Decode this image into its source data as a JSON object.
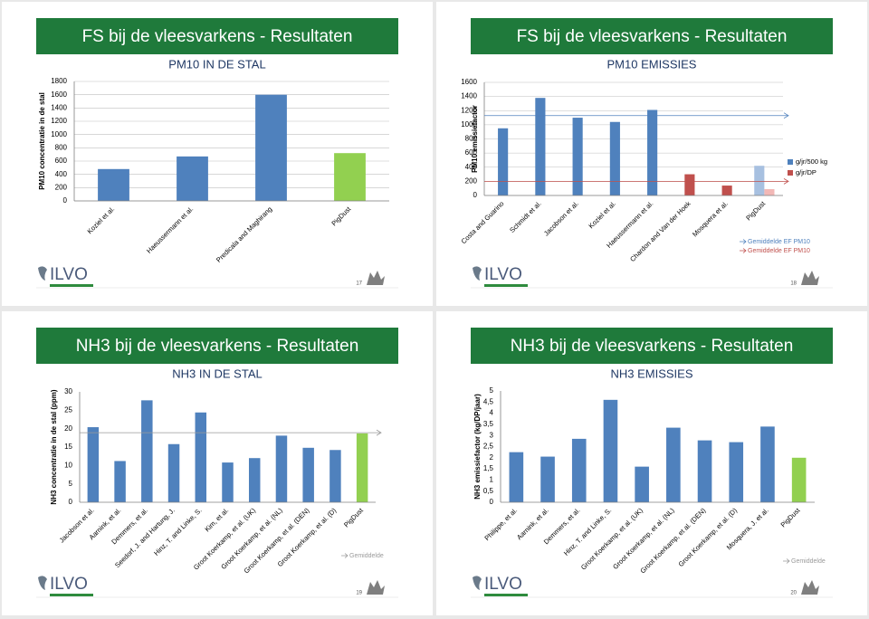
{
  "logo_text": "ILVO",
  "chart_data": [
    {
      "type": "bar",
      "slide_number": 17,
      "title": "FS bij de vleesvarkens - Resultaten",
      "subtitle": "PM10 IN DE STAL",
      "ylabel": "PM10 concentratie in de stal",
      "categories": [
        "Koziel et al.",
        "Haeussermann et al.",
        "Predicala and Maghirang",
        "PigDust"
      ],
      "series": [
        {
          "values": [
            480,
            670,
            1600,
            720
          ],
          "colors": [
            "#4f81bd",
            "#4f81bd",
            "#4f81bd",
            "#92d050"
          ]
        }
      ],
      "ylim": [
        0,
        1800
      ],
      "yticks": [
        0,
        200,
        400,
        600,
        800,
        1000,
        1200,
        1400,
        1600,
        1800
      ],
      "grid": true
    },
    {
      "type": "bar",
      "slide_number": 18,
      "title": "FS bij de vleesvarkens - Resultaten",
      "subtitle": "PM10 EMISSIES",
      "ylabel": "PM10 emissiefactor",
      "categories": [
        "Costa and Guarino",
        "Schmidt et al.",
        "Jacobson et al.",
        "Koziel et al.",
        "Haeussermann et al.",
        "Chardon and Van der Hoek",
        "Mosquera et al.",
        "PigDust"
      ],
      "series": [
        {
          "name": "g/jr/500 kg",
          "color": "#4f81bd",
          "values": [
            950,
            1380,
            1100,
            1040,
            1210,
            null,
            null,
            420
          ],
          "colors": [
            "#4f81bd",
            "#4f81bd",
            "#4f81bd",
            "#4f81bd",
            "#4f81bd",
            "#4f81bd",
            "#4f81bd",
            "#a7c0e0"
          ]
        },
        {
          "name": "g/jr/DP",
          "color": "#c0504d",
          "values": [
            null,
            null,
            null,
            null,
            null,
            300,
            140,
            90
          ],
          "colors": [
            "#c0504d",
            "#c0504d",
            "#c0504d",
            "#c0504d",
            "#c0504d",
            "#c0504d",
            "#c0504d",
            "#f2b8b6"
          ]
        }
      ],
      "reference_lines": [
        {
          "label": "Gemiddelde EF PM10",
          "value": 1130,
          "color": "#4f81bd"
        },
        {
          "label": "Gemiddelde EF PM10",
          "value": 200,
          "color": "#c0504d"
        }
      ],
      "ylim": [
        0,
        1600
      ],
      "yticks": [
        0,
        200,
        400,
        600,
        800,
        1000,
        1200,
        1400,
        1600
      ],
      "grid": true
    },
    {
      "type": "bar",
      "slide_number": 19,
      "title": "NH3 bij de vleesvarkens - Resultaten",
      "subtitle": "NH3 IN DE STAL",
      "ylabel": "NH3 concentratie in de stal (ppm)",
      "categories": [
        "Jacobson et al.",
        "Aarnink, et al.",
        "Demmers, et al.",
        "Seedorf, J. and Hartung, J.",
        "Hinz, T. and Linke, S.",
        "Kim, et al.",
        "Groot Koerkamp, et al. (UK)",
        "Groot Koerkamp, et al. (NL)",
        "Groot Koerkamp, et al. (DEN)",
        "Groot Koerkamp, et al. (D)",
        "PigDust"
      ],
      "series": [
        {
          "values": [
            20.4,
            11.2,
            27.7,
            15.8,
            24.4,
            10.8,
            12,
            18.1,
            14.8,
            14.2,
            18.7
          ],
          "colors": [
            "#4f81bd",
            "#4f81bd",
            "#4f81bd",
            "#4f81bd",
            "#4f81bd",
            "#4f81bd",
            "#4f81bd",
            "#4f81bd",
            "#4f81bd",
            "#4f81bd",
            "#92d050"
          ]
        }
      ],
      "reference_lines": [
        {
          "label": "Gemiddelde",
          "value": 18.9,
          "color": "#9a9a9a"
        }
      ],
      "ylim": [
        0,
        30
      ],
      "yticks": [
        0,
        5,
        10,
        15,
        20,
        25,
        30
      ],
      "grid": false
    },
    {
      "type": "bar",
      "slide_number": 20,
      "title": "NH3 bij de vleesvarkens - Resultaten",
      "subtitle": "NH3 EMISSIES",
      "ylabel": "NH3 emissiefactor (kg/DP/jaar)",
      "categories": [
        "Philippe, et al.",
        "Aarnink, et al.",
        "Demmers, et al.",
        "Hinz, T. and Linke, S.",
        "Groot Koerkamp, et al. (UK)",
        "Groot Koerkamp, et al. (NL)",
        "Groot Koerkamp, et al. (DEN)",
        "Groot Koerkamp, et al. (D)",
        "Mosquera, J. et al.",
        "PigDust"
      ],
      "series": [
        {
          "values": [
            2.25,
            2.05,
            2.85,
            4.6,
            1.6,
            3.35,
            2.78,
            2.7,
            3.4,
            2.0
          ],
          "colors": [
            "#4f81bd",
            "#4f81bd",
            "#4f81bd",
            "#4f81bd",
            "#4f81bd",
            "#4f81bd",
            "#4f81bd",
            "#4f81bd",
            "#4f81bd",
            "#92d050"
          ]
        }
      ],
      "note": "Gemiddelde",
      "ylim": [
        0,
        5
      ],
      "yticks": [
        0,
        {
          "value": 0.5,
          "label": "0,5"
        },
        1,
        {
          "value": 1.5,
          "label": "1,5"
        },
        2,
        {
          "value": 2.5,
          "label": "2,5"
        },
        3,
        {
          "value": 3.5,
          "label": "3,5"
        },
        4,
        {
          "value": 4.5,
          "label": "4,5"
        },
        5
      ],
      "grid": false
    }
  ]
}
